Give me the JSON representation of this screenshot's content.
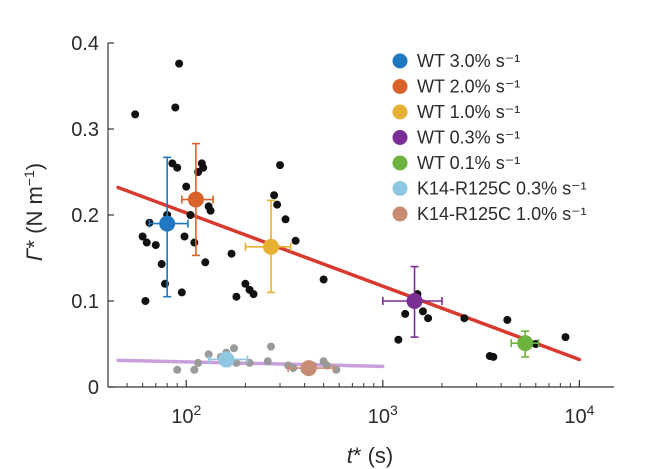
{
  "chart_data": {
    "type": "scatter",
    "xlabel": "t* (s)",
    "ylabel": "Γ* (N m⁻¹)",
    "x_scale": "log",
    "xlim": [
      40,
      15000
    ],
    "ylim": [
      0,
      0.4
    ],
    "yticks": [
      {
        "value": 0,
        "label": "0"
      },
      {
        "value": 0.1,
        "label": "0.1"
      },
      {
        "value": 0.2,
        "label": "0.2"
      },
      {
        "value": 0.3,
        "label": "0.3"
      },
      {
        "value": 0.4,
        "label": "0.4"
      }
    ],
    "xticks": [
      {
        "value": 100,
        "base": "10",
        "exp": "2"
      },
      {
        "value": 1000,
        "base": "10",
        "exp": "3"
      },
      {
        "value": 10000,
        "base": "10",
        "exp": "4"
      }
    ],
    "legend_position": "top-right",
    "series": [
      {
        "name": "WT 3.0% s⁻¹",
        "color": "#1f77c1",
        "x": 80,
        "y": 0.19,
        "xerr": [
          65,
          102
        ],
        "yerr": [
          0.105,
          0.267
        ]
      },
      {
        "name": "WT 2.0% s⁻¹",
        "color": "#d9622b",
        "x": 112,
        "y": 0.218,
        "xerr": [
          95,
          137
        ],
        "yerr": [
          0.153,
          0.283
        ]
      },
      {
        "name": "WT 1.0% s⁻¹",
        "color": "#e8b032",
        "x": 270,
        "y": 0.163,
        "xerr": [
          200,
          340
        ],
        "yerr": [
          0.11,
          0.217
        ]
      },
      {
        "name": "WT 0.3% s⁻¹",
        "color": "#7a2d93",
        "x": 1450,
        "y": 0.1,
        "xerr": [
          1000,
          2000
        ],
        "yerr": [
          0.058,
          0.14
        ]
      },
      {
        "name": "WT 0.1% s⁻¹",
        "color": "#6db33f",
        "x": 5300,
        "y": 0.051,
        "xerr": [
          4500,
          6200
        ],
        "yerr": [
          0.035,
          0.065
        ]
      },
      {
        "name": "K14-R125C 0.3% s⁻¹",
        "color": "#8fc7e3",
        "x": 160,
        "y": 0.032,
        "xerr": [
          130,
          205
        ],
        "yerr": [
          0.024,
          0.04
        ]
      },
      {
        "name": "K14-R125C 1.0% s⁻¹",
        "color": "#c88c72",
        "x": 420,
        "y": 0.022,
        "xerr": [
          330,
          560
        ],
        "yerr": [
          0.016,
          0.027
        ]
      }
    ],
    "wt_points": [
      [
        55,
        0.317
      ],
      [
        60,
        0.175
      ],
      [
        62,
        0.1
      ],
      [
        63,
        0.168
      ],
      [
        65,
        0.191
      ],
      [
        70,
        0.165
      ],
      [
        75,
        0.143
      ],
      [
        78,
        0.12
      ],
      [
        80,
        0.2
      ],
      [
        85,
        0.26
      ],
      [
        88,
        0.325
      ],
      [
        90,
        0.255
      ],
      [
        92,
        0.376
      ],
      [
        95,
        0.11
      ],
      [
        98,
        0.175
      ],
      [
        100,
        0.233
      ],
      [
        105,
        0.2
      ],
      [
        108,
        0.215
      ],
      [
        110,
        0.168
      ],
      [
        115,
        0.25
      ],
      [
        120,
        0.26
      ],
      [
        122,
        0.255
      ],
      [
        125,
        0.145
      ],
      [
        130,
        0.21
      ],
      [
        133,
        0.205
      ],
      [
        170,
        0.155
      ],
      [
        180,
        0.105
      ],
      [
        200,
        0.12
      ],
      [
        210,
        0.113
      ],
      [
        220,
        0.108
      ],
      [
        280,
        0.223
      ],
      [
        290,
        0.212
      ],
      [
        300,
        0.258
      ],
      [
        320,
        0.195
      ],
      [
        360,
        0.17
      ],
      [
        500,
        0.125
      ],
      [
        1200,
        0.055
      ],
      [
        1300,
        0.085
      ],
      [
        1500,
        0.108
      ],
      [
        1600,
        0.088
      ],
      [
        1700,
        0.08
      ],
      [
        2600,
        0.08
      ],
      [
        3500,
        0.036
      ],
      [
        3650,
        0.035
      ],
      [
        4300,
        0.078
      ],
      [
        6000,
        0.05
      ],
      [
        8500,
        0.058
      ]
    ],
    "k14_points": [
      [
        90,
        0.02
      ],
      [
        110,
        0.02
      ],
      [
        115,
        0.028
      ],
      [
        130,
        0.038
      ],
      [
        150,
        0.035
      ],
      [
        160,
        0.04
      ],
      [
        175,
        0.045
      ],
      [
        180,
        0.028
      ],
      [
        210,
        0.028
      ],
      [
        260,
        0.03
      ],
      [
        270,
        0.047
      ],
      [
        330,
        0.025
      ],
      [
        350,
        0.022
      ],
      [
        400,
        0.02
      ],
      [
        440,
        0.025
      ],
      [
        500,
        0.03
      ],
      [
        520,
        0.025
      ],
      [
        580,
        0.02
      ]
    ],
    "fit_lines": [
      {
        "color": "#d93a2e",
        "x": [
          45,
          10000
        ],
        "y": [
          0.232,
          0.032
        ]
      },
      {
        "color": "#c9a0dc",
        "x": [
          45,
          1000
        ],
        "y": [
          0.031,
          0.024
        ]
      }
    ]
  }
}
